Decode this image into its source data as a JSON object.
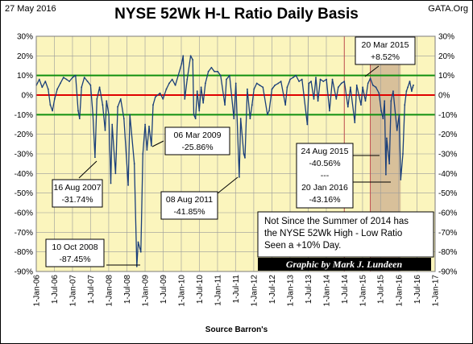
{
  "header": {
    "date": "27 May 2016",
    "site": "GATA.Org"
  },
  "chart_data": {
    "type": "line",
    "title": "NYSE 52Wk H-L Ratio Daily Basis",
    "source": "Source Barron's",
    "ylim": [
      -90,
      30
    ],
    "y_ticks": [
      30,
      20,
      10,
      0,
      -10,
      -20,
      -30,
      -40,
      -50,
      -60,
      -70,
      -80,
      -90
    ],
    "y_tick_labels": [
      "30%",
      "20%",
      "10%",
      "0%",
      "-10%",
      "-20%",
      "-30%",
      "-40%",
      "-50%",
      "-60%",
      "-70%",
      "-80%",
      "-90%"
    ],
    "x_ticks": [
      "2006-01-01",
      "2006-07-01",
      "2007-01-01",
      "2007-07-01",
      "2008-01-01",
      "2008-07-01",
      "2009-01-01",
      "2009-07-01",
      "2010-01-01",
      "2010-07-01",
      "2011-01-01",
      "2011-07-01",
      "2012-01-01",
      "2012-07-01",
      "2013-01-01",
      "2013-07-01",
      "2014-01-01",
      "2014-07-01",
      "2015-01-01",
      "2015-07-01",
      "2016-01-01",
      "2016-07-01",
      "2017-01-01"
    ],
    "x_tick_labels": [
      "1-Jan-06",
      "1-Jul-06",
      "1-Jan-07",
      "1-Jul-07",
      "1-Jan-08",
      "1-Jul-08",
      "1-Jan-09",
      "1-Jul-09",
      "1-Jan-10",
      "1-Jul-10",
      "1-Jan-11",
      "1-Jul-11",
      "1-Jan-12",
      "1-Jul-12",
      "1-Jan-13",
      "1-Jul-13",
      "1-Jan-14",
      "1-Jul-14",
      "1-Jan-15",
      "1-Jul-15",
      "1-Jan-16",
      "1-Jul-16",
      "1-Jan-17"
    ],
    "reference_lines": [
      {
        "y": 10,
        "color": "#109010"
      },
      {
        "y": 0,
        "color": "#e00000"
      },
      {
        "y": -10,
        "color": "#109010"
      }
    ],
    "vertical_markers": [
      {
        "x": "2015-03-20",
        "color": "#c05050"
      },
      {
        "x": "2014-07-01",
        "color": "#c05050"
      }
    ],
    "shaded_region": {
      "x0": "2015-03-20",
      "x1": "2016-01-20",
      "color": "#d8c09a"
    },
    "series": [
      {
        "color": "#1a3f7a",
        "points": [
          [
            "2006-01-03",
            5
          ],
          [
            "2006-02-01",
            8
          ],
          [
            "2006-03-01",
            4
          ],
          [
            "2006-04-03",
            7
          ],
          [
            "2006-05-01",
            3
          ],
          [
            "2006-05-22",
            -5
          ],
          [
            "2006-06-13",
            -8
          ],
          [
            "2006-07-05",
            -2
          ],
          [
            "2006-08-01",
            3
          ],
          [
            "2006-09-01",
            6
          ],
          [
            "2006-10-02",
            9
          ],
          [
            "2006-11-01",
            8
          ],
          [
            "2006-12-01",
            7
          ],
          [
            "2007-01-02",
            9
          ],
          [
            "2007-02-01",
            10
          ],
          [
            "2007-02-27",
            -8
          ],
          [
            "2007-03-14",
            -12
          ],
          [
            "2007-04-02",
            4
          ],
          [
            "2007-05-01",
            9
          ],
          [
            "2007-06-01",
            7
          ],
          [
            "2007-07-02",
            5
          ],
          [
            "2007-07-26",
            -10
          ],
          [
            "2007-08-16",
            -31.74
          ],
          [
            "2007-09-04",
            -2
          ],
          [
            "2007-10-01",
            4
          ],
          [
            "2007-11-01",
            -5
          ],
          [
            "2007-11-26",
            -18
          ],
          [
            "2007-12-10",
            -3
          ],
          [
            "2008-01-02",
            -10
          ],
          [
            "2008-01-22",
            -45
          ],
          [
            "2008-02-05",
            -15
          ],
          [
            "2008-03-10",
            -40
          ],
          [
            "2008-03-17",
            -30
          ],
          [
            "2008-04-01",
            -6
          ],
          [
            "2008-05-01",
            -2
          ],
          [
            "2008-06-02",
            -12
          ],
          [
            "2008-07-15",
            -46
          ],
          [
            "2008-08-01",
            -10
          ],
          [
            "2008-09-15",
            -35
          ],
          [
            "2008-10-10",
            -87.45
          ],
          [
            "2008-10-24",
            -75
          ],
          [
            "2008-11-20",
            -80
          ],
          [
            "2008-12-10",
            -30
          ],
          [
            "2009-01-02",
            -15
          ],
          [
            "2009-01-20",
            -28
          ],
          [
            "2009-02-10",
            -16
          ],
          [
            "2009-03-06",
            -25.86
          ],
          [
            "2009-03-23",
            -5
          ],
          [
            "2009-04-15",
            -1
          ],
          [
            "2009-06-01",
            1
          ],
          [
            "2009-07-01",
            -2
          ],
          [
            "2009-08-03",
            3
          ],
          [
            "2009-09-01",
            6
          ],
          [
            "2009-10-01",
            8
          ],
          [
            "2009-11-02",
            5
          ],
          [
            "2009-12-01",
            10
          ],
          [
            "2010-01-04",
            16
          ],
          [
            "2010-01-20",
            20
          ],
          [
            "2010-02-05",
            -2
          ],
          [
            "2010-03-01",
            8
          ],
          [
            "2010-04-05",
            20
          ],
          [
            "2010-04-26",
            18
          ],
          [
            "2010-05-07",
            -10
          ],
          [
            "2010-05-25",
            -12
          ],
          [
            "2010-06-10",
            2
          ],
          [
            "2010-07-01",
            -8
          ],
          [
            "2010-07-20",
            4
          ],
          [
            "2010-08-10",
            -4
          ],
          [
            "2010-09-01",
            6
          ],
          [
            "2010-10-01",
            12
          ],
          [
            "2010-11-01",
            14
          ],
          [
            "2010-12-01",
            12
          ],
          [
            "2011-01-03",
            12
          ],
          [
            "2011-02-01",
            10
          ],
          [
            "2011-03-16",
            -5
          ],
          [
            "2011-04-01",
            8
          ],
          [
            "2011-05-02",
            10
          ],
          [
            "2011-06-15",
            -12
          ],
          [
            "2011-07-05",
            6
          ],
          [
            "2011-08-08",
            -41.85
          ],
          [
            "2011-08-22",
            -12
          ],
          [
            "2011-09-22",
            -30
          ],
          [
            "2011-10-04",
            -32
          ],
          [
            "2011-10-28",
            3
          ],
          [
            "2011-11-25",
            -12
          ],
          [
            "2011-12-15",
            -5
          ],
          [
            "2012-01-03",
            3
          ],
          [
            "2012-02-01",
            6
          ],
          [
            "2012-03-01",
            5
          ],
          [
            "2012-04-02",
            4
          ],
          [
            "2012-05-18",
            -10
          ],
          [
            "2012-06-04",
            -8
          ],
          [
            "2012-07-02",
            3
          ],
          [
            "2012-08-01",
            5
          ],
          [
            "2012-09-04",
            6
          ],
          [
            "2012-10-01",
            7
          ],
          [
            "2012-11-15",
            -5
          ],
          [
            "2012-12-03",
            4
          ],
          [
            "2013-01-02",
            8
          ],
          [
            "2013-02-01",
            9
          ],
          [
            "2013-03-01",
            10
          ],
          [
            "2013-04-01",
            7
          ],
          [
            "2013-05-01",
            8
          ],
          [
            "2013-06-24",
            -15
          ],
          [
            "2013-07-10",
            6
          ],
          [
            "2013-08-01",
            7
          ],
          [
            "2013-08-28",
            -2
          ],
          [
            "2013-09-18",
            9
          ],
          [
            "2013-10-09",
            -3
          ],
          [
            "2013-11-01",
            8
          ],
          [
            "2013-12-02",
            7
          ],
          [
            "2014-01-02",
            8
          ],
          [
            "2014-02-03",
            -8
          ],
          [
            "2014-03-03",
            8
          ],
          [
            "2014-04-11",
            -2
          ],
          [
            "2014-05-01",
            4
          ],
          [
            "2014-06-02",
            6
          ],
          [
            "2014-07-01",
            7
          ],
          [
            "2014-08-07",
            -6
          ],
          [
            "2014-09-01",
            4
          ],
          [
            "2014-10-15",
            -14
          ],
          [
            "2014-11-03",
            5
          ],
          [
            "2014-12-16",
            -5
          ],
          [
            "2015-01-02",
            4
          ],
          [
            "2015-01-30",
            -3
          ],
          [
            "2015-02-25",
            6
          ],
          [
            "2015-03-20",
            8.52
          ],
          [
            "2015-04-15",
            5
          ],
          [
            "2015-05-15",
            4
          ],
          [
            "2015-06-15",
            1
          ],
          [
            "2015-07-08",
            -8
          ],
          [
            "2015-07-27",
            -12
          ],
          [
            "2015-08-10",
            -3
          ],
          [
            "2015-08-24",
            -40.56
          ],
          [
            "2015-09-01",
            -22
          ],
          [
            "2015-09-28",
            -35
          ],
          [
            "2015-10-15",
            -3
          ],
          [
            "2015-11-05",
            2
          ],
          [
            "2015-12-14",
            -18
          ],
          [
            "2016-01-05",
            -10
          ],
          [
            "2016-01-20",
            -43.16
          ],
          [
            "2016-02-11",
            -30
          ],
          [
            "2016-03-01",
            -5
          ],
          [
            "2016-03-18",
            2
          ],
          [
            "2016-04-01",
            4
          ],
          [
            "2016-04-20",
            7
          ],
          [
            "2016-05-10",
            2
          ],
          [
            "2016-05-20",
            4
          ],
          [
            "2016-05-27",
            5
          ]
        ]
      }
    ],
    "annotations": [
      {
        "lines": [
          "16 Aug 2007",
          "-31.74%"
        ]
      },
      {
        "lines": [
          "10 Oct 2008",
          "-87.45%"
        ]
      },
      {
        "lines": [
          "06 Mar 2009",
          "-25.86%"
        ]
      },
      {
        "lines": [
          "08 Aug 2011",
          "-41.85%"
        ]
      },
      {
        "lines": [
          "24 Aug 2015",
          "-40.56%",
          "---",
          "20 Jan 2016",
          "-43.16%"
        ]
      },
      {
        "lines": [
          "20 Mar 2015",
          "+8.52%"
        ]
      }
    ],
    "note": [
      "Not Since the Summer of 2014 has",
      "the NYSE 52Wk High - Low Ratio",
      "Seen a +10% Day."
    ],
    "credit": "Graphic by Mark J. Lundeen",
    "colors": {
      "plot_background": "#fbf5bd",
      "grid": "#9a9a9a",
      "frame": "#7c7c7c"
    }
  }
}
